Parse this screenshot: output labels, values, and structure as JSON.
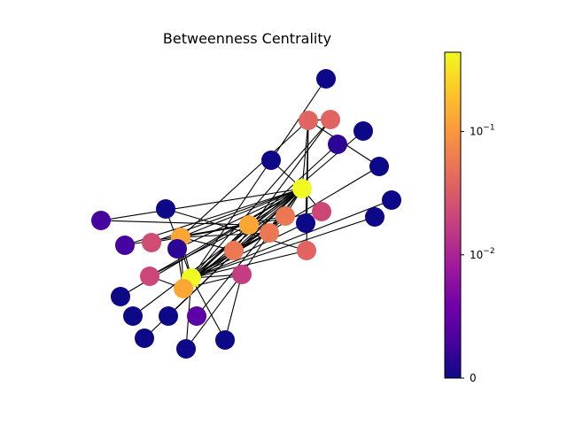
{
  "chart_data": {
    "type": "network",
    "title": "Betweenness Centrality",
    "colormap": "plasma",
    "colorbar": {
      "scale": "symlog",
      "range": [
        0,
        0.44
      ],
      "ticks": [
        {
          "value": 0,
          "label": "0"
        },
        {
          "value": 0.01,
          "label": "10",
          "exp": "−2"
        },
        {
          "value": 0.1,
          "label": "10",
          "exp": "−1"
        }
      ],
      "colors": [
        "#0d0887",
        "#46039f",
        "#7201a8",
        "#9c179e",
        "#bd3786",
        "#d8576b",
        "#ed7953",
        "#fb9f3a",
        "#fdca26",
        "#f0f921"
      ]
    },
    "nodes": [
      {
        "id": 0,
        "color": "#f0f921"
      },
      {
        "id": 1,
        "color": "#fca636"
      },
      {
        "id": 2,
        "color": "#f0f921"
      },
      {
        "id": 3,
        "color": "#fca636"
      },
      {
        "id": 4,
        "color": "#fca636"
      },
      {
        "id": 5,
        "color": "#ec7853"
      },
      {
        "id": 6,
        "color": "#ec7853"
      },
      {
        "id": 7,
        "color": "#ec7853"
      },
      {
        "id": 8,
        "color": "#e16462"
      },
      {
        "id": 9,
        "color": "#e16462"
      },
      {
        "id": 10,
        "color": "#e16462"
      },
      {
        "id": 11,
        "color": "#c33d80"
      },
      {
        "id": 12,
        "color": "#cc4778"
      },
      {
        "id": 13,
        "color": "#d04c73"
      },
      {
        "id": 14,
        "color": "#cc4778"
      },
      {
        "id": 15,
        "color": "#5c01a6"
      },
      {
        "id": 16,
        "color": "#46039f"
      },
      {
        "id": 17,
        "color": "#46039f"
      },
      {
        "id": 18,
        "color": "#2c0594"
      },
      {
        "id": 19,
        "color": "#2c0594"
      },
      {
        "id": 20,
        "color": "#0d0887"
      },
      {
        "id": 21,
        "color": "#0d0887"
      },
      {
        "id": 22,
        "color": "#0d0887"
      },
      {
        "id": 23,
        "color": "#0d0887"
      },
      {
        "id": 24,
        "color": "#0d0887"
      },
      {
        "id": 25,
        "color": "#0d0887"
      },
      {
        "id": 26,
        "color": "#0d0887"
      },
      {
        "id": 27,
        "color": "#0d0887"
      },
      {
        "id": 28,
        "color": "#0d0887"
      },
      {
        "id": 29,
        "color": "#0d0887"
      },
      {
        "id": 30,
        "color": "#0d0887"
      },
      {
        "id": 31,
        "color": "#0d0887"
      },
      {
        "id": 32,
        "color": "#0d0887"
      },
      {
        "id": 33,
        "color": "#0d0887"
      }
    ],
    "edges": [
      [
        0,
        1
      ],
      [
        0,
        3
      ],
      [
        0,
        4
      ],
      [
        0,
        5
      ],
      [
        0,
        6
      ],
      [
        0,
        7
      ],
      [
        0,
        8
      ],
      [
        0,
        12
      ],
      [
        0,
        13
      ],
      [
        0,
        14
      ],
      [
        0,
        15
      ],
      [
        0,
        16
      ],
      [
        0,
        17
      ],
      [
        0,
        18
      ],
      [
        0,
        27
      ],
      [
        0,
        29
      ],
      [
        0,
        30
      ],
      [
        0,
        31
      ],
      [
        0,
        32
      ],
      [
        1,
        4
      ],
      [
        1,
        14
      ],
      [
        1,
        12
      ],
      [
        1,
        13
      ],
      [
        1,
        16
      ],
      [
        1,
        17
      ],
      [
        2,
        3
      ],
      [
        2,
        5
      ],
      [
        2,
        6
      ],
      [
        2,
        7
      ],
      [
        2,
        9
      ],
      [
        2,
        10
      ],
      [
        2,
        11
      ],
      [
        2,
        19
      ],
      [
        2,
        20
      ],
      [
        2,
        21
      ],
      [
        2,
        22
      ],
      [
        2,
        23
      ],
      [
        2,
        24
      ],
      [
        2,
        25
      ],
      [
        2,
        26
      ],
      [
        2,
        28
      ],
      [
        2,
        33
      ],
      [
        3,
        4
      ],
      [
        3,
        5
      ],
      [
        3,
        6
      ],
      [
        3,
        7
      ],
      [
        3,
        8
      ],
      [
        4,
        5
      ],
      [
        4,
        11
      ],
      [
        4,
        14
      ],
      [
        4,
        18
      ],
      [
        5,
        6
      ],
      [
        5,
        7
      ],
      [
        6,
        7
      ],
      [
        6,
        11
      ],
      [
        7,
        9
      ],
      [
        8,
        9
      ],
      [
        8,
        10
      ],
      [
        8,
        26
      ],
      [
        8,
        23
      ],
      [
        10,
        28
      ],
      [
        11,
        33
      ],
      [
        11,
        22
      ]
    ]
  }
}
